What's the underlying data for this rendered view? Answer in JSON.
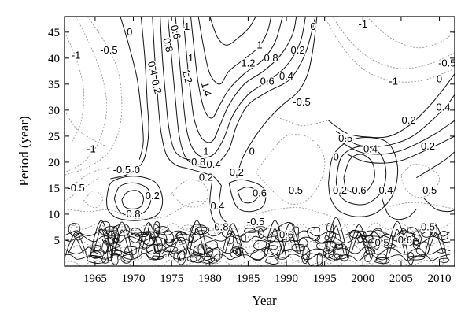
{
  "chart_data": {
    "type": "contour",
    "xlabel": "Year",
    "ylabel": "Period (year)",
    "xlim": [
      1961,
      2012
    ],
    "ylim": [
      0,
      48
    ],
    "xticks": [
      1965,
      1970,
      1975,
      1980,
      1985,
      1990,
      1995,
      2000,
      2005,
      2010
    ],
    "yticks": [
      5,
      10,
      15,
      20,
      25,
      30,
      35,
      40,
      45
    ],
    "grid": false,
    "contour_levels_labeled": [
      {
        "label": "-1",
        "x": 1962.5,
        "y": 40.5
      },
      {
        "label": "-0.5",
        "x": 1966.8,
        "y": 41.5
      },
      {
        "label": "0",
        "x": 1969.5,
        "y": 45
      },
      {
        "label": "0.6",
        "x": 1975.5,
        "y": 45
      },
      {
        "label": "0.8",
        "x": 1974.5,
        "y": 42.5
      },
      {
        "label": "1",
        "x": 1977,
        "y": 46
      },
      {
        "label": "1",
        "x": 1977.5,
        "y": 40
      },
      {
        "label": "0.4",
        "x": 1972.5,
        "y": 38
      },
      {
        "label": "0.2",
        "x": 1973,
        "y": 34.5
      },
      {
        "label": "1.2",
        "x": 1977,
        "y": 36.5
      },
      {
        "label": "1.4",
        "x": 1979.5,
        "y": 34
      },
      {
        "label": "1.2",
        "x": 1985,
        "y": 39
      },
      {
        "label": "1",
        "x": 1986.5,
        "y": 42.5
      },
      {
        "label": "0.8",
        "x": 1988,
        "y": 40
      },
      {
        "label": "0.6",
        "x": 1987.5,
        "y": 35.5
      },
      {
        "label": "0.4",
        "x": 1990,
        "y": 36.5
      },
      {
        "label": "0.2",
        "x": 1991.5,
        "y": 41.5
      },
      {
        "label": "0",
        "x": 1993.5,
        "y": 46
      },
      {
        "label": "-1",
        "x": 2000,
        "y": 46.5
      },
      {
        "label": "-0.5",
        "x": 1992,
        "y": 31.5
      },
      {
        "label": "-1",
        "x": 2004,
        "y": 35.5
      },
      {
        "label": "-0.5",
        "x": 2011,
        "y": 39
      },
      {
        "label": "0",
        "x": 2010,
        "y": 36
      },
      {
        "label": "0.4",
        "x": 2010.5,
        "y": 30.5
      },
      {
        "label": "0.2",
        "x": 2006,
        "y": 28
      },
      {
        "label": "0.2",
        "x": 2008.5,
        "y": 23
      },
      {
        "label": "0.4",
        "x": 2001,
        "y": 22.5
      },
      {
        "label": "-0.5",
        "x": 1997.5,
        "y": 24.5
      },
      {
        "label": "0",
        "x": 1996.5,
        "y": 21
      },
      {
        "label": "0.6",
        "x": 1999.5,
        "y": 14.5
      },
      {
        "label": "0.2",
        "x": 1997,
        "y": 14.5
      },
      {
        "label": "0.4",
        "x": 2003,
        "y": 14.5
      },
      {
        "label": "-0.5",
        "x": 2008.5,
        "y": 14.5
      },
      {
        "label": "-1",
        "x": 1964.5,
        "y": 22.5
      },
      {
        "label": "-0.5",
        "x": 1968.5,
        "y": 18.5
      },
      {
        "label": "-0.5",
        "x": 1962.5,
        "y": 15
      },
      {
        "label": "0",
        "x": 1970.5,
        "y": 18.5
      },
      {
        "label": "0.2",
        "x": 1972.5,
        "y": 13.5
      },
      {
        "label": "0.8",
        "x": 1970,
        "y": 10
      },
      {
        "label": "1",
        "x": 1979.5,
        "y": 22
      },
      {
        "label": "0.8",
        "x": 1978.5,
        "y": 20
      },
      {
        "label": "0.4",
        "x": 1980.5,
        "y": 19.5
      },
      {
        "label": "0.2",
        "x": 1979.5,
        "y": 17
      },
      {
        "label": "0",
        "x": 1985.5,
        "y": 22
      },
      {
        "label": "0.2",
        "x": 1983.5,
        "y": 18
      },
      {
        "label": "0.6",
        "x": 1986.5,
        "y": 14
      },
      {
        "label": "0.4",
        "x": 1981,
        "y": 11.5
      },
      {
        "label": "0.8",
        "x": 1981.5,
        "y": 7.5
      },
      {
        "label": "-0.5",
        "x": 1986,
        "y": 8.5
      },
      {
        "label": "-0.5",
        "x": 1991,
        "y": 14.5
      },
      {
        "label": "0.6",
        "x": 1990,
        "y": 6
      },
      {
        "label": "0.5",
        "x": 2002.5,
        "y": 4.5
      },
      {
        "label": "0.6",
        "x": 2005.5,
        "y": 5
      },
      {
        "label": "0.5",
        "x": 2008.5,
        "y": 7.5
      }
    ]
  }
}
